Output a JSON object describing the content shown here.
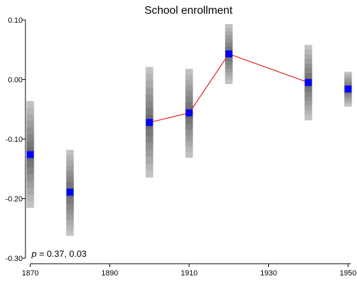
{
  "chart_data": {
    "type": "scatter",
    "title": "School enrollment",
    "xlabel": "",
    "ylabel": "",
    "xlim": [
      1870,
      1950
    ],
    "ylim": [
      -0.3,
      0.1
    ],
    "xticks": [
      1870,
      1890,
      1910,
      1930,
      1950
    ],
    "yticks": [
      0.1,
      0.0,
      -0.1,
      -0.2,
      -0.3
    ],
    "ytick_labels": [
      "0.10",
      "0.00",
      "-0.10",
      "-0.20",
      "-0.30"
    ],
    "grid": false,
    "points": [
      {
        "x": 1870,
        "y": -0.126,
        "ci_low": -0.215,
        "ci_high": -0.036
      },
      {
        "x": 1880,
        "y": -0.189,
        "ci_low": -0.262,
        "ci_high": -0.118
      },
      {
        "x": 1900,
        "y": -0.072,
        "ci_low": -0.164,
        "ci_high": 0.021
      },
      {
        "x": 1910,
        "y": -0.056,
        "ci_low": -0.131,
        "ci_high": 0.018
      },
      {
        "x": 1920,
        "y": 0.043,
        "ci_low": -0.007,
        "ci_high": 0.093
      },
      {
        "x": 1940,
        "y": -0.005,
        "ci_low": -0.068,
        "ci_high": 0.058
      },
      {
        "x": 1950,
        "y": -0.016,
        "ci_low": -0.045,
        "ci_high": 0.013
      }
    ],
    "line_connects_x": [
      1900,
      1910,
      1920,
      1940
    ],
    "annotation": {
      "italic": "p",
      "rest": " = 0.37, 0.03"
    },
    "colors": {
      "point": "#0000ff",
      "line": "#e41a1c",
      "band_light": "#c8c8c8",
      "band_dark": "#666666",
      "axis": "#000000"
    }
  }
}
